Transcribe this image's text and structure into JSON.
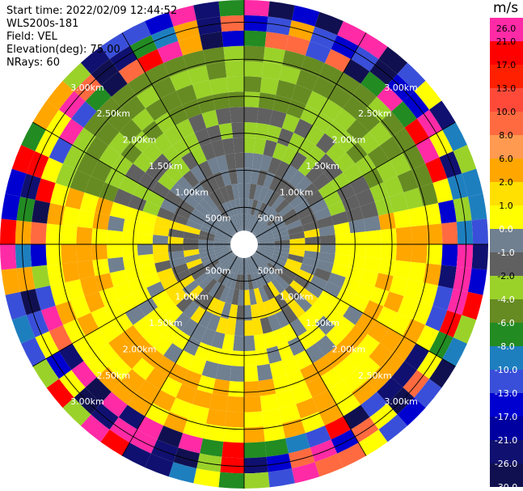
{
  "info": {
    "start_time": "Start time: 2022/02/09 12:44:52",
    "instrument": "WLS200s-181",
    "field": "Field: VEL",
    "elevation": "Elevation(deg): 75.00",
    "nrays": "NRays: 60"
  },
  "chart_data": {
    "type": "heatmap",
    "projection": "polar",
    "rays": 60,
    "range_rings": [
      "500m",
      "1.00km",
      "1.50km",
      "2.00km",
      "2.50km",
      "3.00km"
    ],
    "ring_values_m": [
      500,
      1000,
      1500,
      2000,
      2500,
      3000
    ],
    "max_range_m": 3300,
    "colorbar": {
      "unit": "m/s",
      "tick_labels": [
        "26.0",
        "21.0",
        "17.0",
        "13.0",
        "10.0",
        "8.0",
        "6.0",
        "2.0",
        "1.0",
        "0.0",
        "-1.0",
        "-2.0",
        "-4.0",
        "-6.0",
        "-8.0",
        "-10.0",
        "-13.0",
        "-17.0",
        "-21.0",
        "-26.0",
        "-30.0"
      ],
      "colors": [
        "#ff2aa6",
        "#ff0000",
        "#ff2000",
        "#ff4a3a",
        "#ff6a40",
        "#ff9a50",
        "#ffa600",
        "#ffe000",
        "#ffff00",
        "#708090",
        "#606060",
        "#9ad22a",
        "#668b22",
        "#228b22",
        "#1e7fbf",
        "#3a4fd9",
        "#0000d0",
        "#0000a0",
        "#101070",
        "#101050"
      ]
    }
  }
}
